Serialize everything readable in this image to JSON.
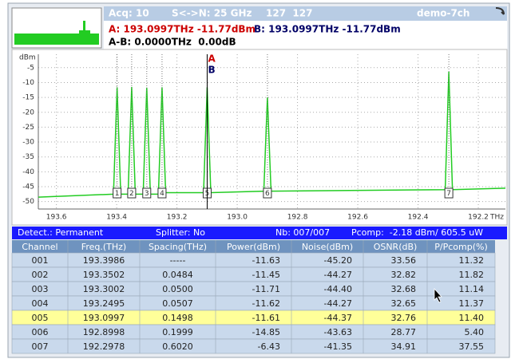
{
  "header": {
    "acq": "Acq: 10",
    "sn": "S<->N: 25 GHz",
    "counts": "127  127",
    "name": "demo-7ch",
    "cursor_a": "A: 193.0997THz -11.77dBm",
    "cursor_b": "B: 193.0997THz -11.77dBm",
    "delta": "A-B: 0.0000THz  0.00dB"
  },
  "chart_data": {
    "type": "line",
    "y_label": "dBm",
    "x_unit": "THz",
    "x": [
      193.66,
      193.4106,
      193.3986,
      193.3866,
      193.3622,
      193.3502,
      193.3382,
      193.3122,
      193.3002,
      193.2882,
      193.2615,
      193.2495,
      193.2375,
      193.1117,
      193.0997,
      193.0877,
      192.9118,
      192.8998,
      192.8878,
      192.3098,
      192.2978,
      192.2858,
      192.11
    ],
    "series": [
      {
        "color": "#22cc22",
        "values": [
          -48.5,
          -47.5,
          -11.6,
          -47.5,
          -47.5,
          -11.5,
          -47.5,
          -47.5,
          -11.7,
          -47.5,
          -47.5,
          -11.6,
          -47,
          -47,
          -11.6,
          -47,
          -46.5,
          -14.9,
          -46.5,
          -46,
          -6.4,
          -46,
          -45.5
        ]
      }
    ],
    "xlim": [
      193.66,
      192.11
    ],
    "ylim": [
      -52.5,
      -0.5
    ],
    "xticks": [
      193.6,
      193.4,
      193.2,
      {
        "value": 193,
        "label": "193.0"
      },
      192.8,
      192.6,
      192.4,
      192.2
    ],
    "yticks": [
      -5,
      -10,
      -15,
      -20,
      -25,
      -30,
      -35,
      -40,
      -45,
      -50
    ],
    "grid": true,
    "markers": {
      "labels": [
        "1",
        "2",
        "3",
        "4",
        "5",
        "6",
        "7"
      ],
      "x": [
        193.3986,
        193.3502,
        193.3002,
        193.2495,
        193.0997,
        192.8998,
        192.2978
      ]
    },
    "cursor": {
      "x": 193.0997,
      "labels": [
        "A",
        "B"
      ]
    }
  },
  "status": {
    "detect": "Detect.: Permanent",
    "splitter": "Splitter: No",
    "nb": "Nb: 007/007",
    "pcomp": "Pcomp:  -2.18 dBm/ 605.5 uW"
  },
  "table": {
    "columns": [
      "Channel",
      "Freq.(THz)",
      "Spacing(THz)",
      "Power(dBm)",
      "Noise(dBm)",
      "OSNR(dB)",
      "P/Pcomp(%)"
    ],
    "selected_row": 4,
    "rows": [
      [
        "001",
        "193.3986",
        "-----",
        "-11.63",
        "-45.20",
        "33.56",
        "11.32"
      ],
      [
        "002",
        "193.3502",
        "0.0484",
        "-11.45",
        "-44.27",
        "32.82",
        "11.82"
      ],
      [
        "003",
        "193.3002",
        "0.0500",
        "-11.71",
        "-44.40",
        "32.68",
        "11.14"
      ],
      [
        "004",
        "193.2495",
        "0.0507",
        "-11.62",
        "-44.27",
        "32.65",
        "11.37"
      ],
      [
        "005",
        "193.0997",
        "0.1498",
        "-11.61",
        "-44.37",
        "32.76",
        "11.40"
      ],
      [
        "006",
        "192.8998",
        "0.1999",
        "-14.85",
        "-43.63",
        "28.77",
        "5.40"
      ],
      [
        "007",
        "192.2978",
        "0.6020",
        "-6.43",
        "-41.35",
        "34.91",
        "37.55"
      ]
    ]
  }
}
